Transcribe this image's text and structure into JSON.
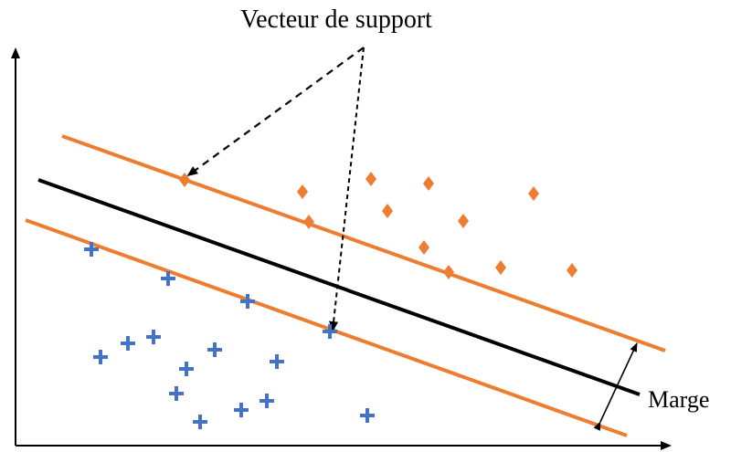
{
  "annotations": {
    "support_vector_label": "Vecteur de support",
    "margin_label": "Marge"
  },
  "colors": {
    "positive_class": "#ED7D31",
    "negative_class": "#4472C4",
    "hyperplane": "#000000",
    "margin_lines": "#ED7D31",
    "axes": "#000000"
  },
  "classes": {
    "positive_marker": "diamond",
    "negative_marker": "plus"
  }
}
